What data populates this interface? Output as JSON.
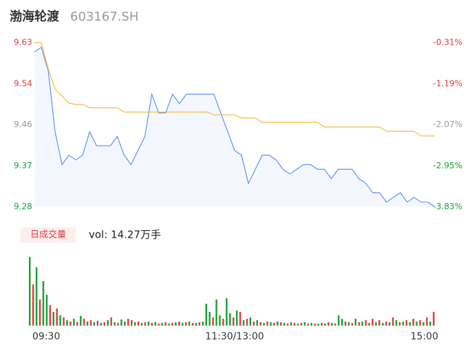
{
  "chart_data": {
    "type": "intraday",
    "title": "渤海轮渡",
    "subtitle": "603167.SH",
    "xlim": [
      0,
      240
    ],
    "xticks": [
      {
        "value": 0,
        "label": "09:30"
      },
      {
        "value": 120,
        "label": "11:30/13:00"
      },
      {
        "value": 240,
        "label": "15:00"
      }
    ],
    "ylim": [
      9.28,
      9.63
    ],
    "yticks": [
      9.28,
      {
        "value": 9.3675,
        "label": "9.37"
      },
      {
        "value": 9.455,
        "label": "9.46"
      },
      {
        "value": 9.5425,
        "label": "9.54"
      },
      9.63
    ],
    "ytick_colors": [
      "#1aa034",
      "#1aa034",
      "#999999",
      "#e23b3b",
      "#e23b3b"
    ],
    "y2lim": [
      -3.83,
      -0.31
    ],
    "y2ticks": [
      {
        "value": -3.83,
        "label": "-3.83%"
      },
      {
        "value": -2.95,
        "label": "-2.95%"
      },
      {
        "value": -2.07,
        "label": "-2.07%"
      },
      {
        "value": -1.19,
        "label": "-1.19%"
      },
      {
        "value": -0.31,
        "label": "-0.31%"
      }
    ],
    "series": [
      {
        "color": "#5b8ff9",
        "values": [
          9.61,
          9.62,
          9.57,
          9.44,
          9.37,
          9.39,
          9.38,
          9.39,
          9.44,
          9.41,
          9.41,
          9.41,
          9.43,
          9.39,
          9.37,
          9.4,
          9.43,
          9.52,
          9.48,
          9.48,
          9.52,
          9.5,
          9.52,
          9.52,
          9.52,
          9.52,
          9.52,
          9.48,
          9.44,
          9.4,
          9.39,
          9.33,
          9.36,
          9.39,
          9.39,
          9.38,
          9.36,
          9.35,
          9.36,
          9.37,
          9.37,
          9.36,
          9.36,
          9.34,
          9.36,
          9.36,
          9.36,
          9.34,
          9.33,
          9.31,
          9.31,
          9.29,
          9.3,
          9.31,
          9.29,
          9.3,
          9.29,
          9.29,
          9.28
        ]
      },
      {
        "color": "#f5b942",
        "values": [
          9.63,
          9.63,
          9.574,
          9.53,
          9.516,
          9.501,
          9.498,
          9.498,
          9.491,
          9.491,
          9.491,
          9.491,
          9.491,
          9.482,
          9.482,
          9.482,
          9.482,
          9.482,
          9.482,
          9.482,
          9.482,
          9.482,
          9.482,
          9.482,
          9.482,
          9.482,
          9.476,
          9.476,
          9.476,
          9.476,
          9.469,
          9.469,
          9.469,
          9.46,
          9.46,
          9.46,
          9.46,
          9.46,
          9.46,
          9.46,
          9.46,
          9.46,
          9.45,
          9.45,
          9.45,
          9.45,
          9.45,
          9.45,
          9.45,
          9.45,
          9.45,
          9.441,
          9.441,
          9.441,
          9.441,
          9.441,
          9.431,
          9.431,
          9.431
        ]
      }
    ],
    "volume": {
      "label": "日成交量",
      "text": "vol: 14.27万手",
      "ylim": [
        0,
        100
      ],
      "values": [
        100,
        60,
        85,
        38,
        65,
        45,
        30,
        20,
        25,
        15,
        12,
        8,
        6,
        10,
        5,
        14,
        10,
        6,
        8,
        5,
        7,
        4,
        5,
        8,
        12,
        5,
        4,
        9,
        6,
        10,
        8,
        5,
        6,
        4,
        5,
        6,
        4,
        5,
        3,
        4,
        5,
        3,
        4,
        5,
        6,
        4,
        5,
        6,
        4,
        4,
        5,
        6,
        32,
        20,
        12,
        38,
        15,
        10,
        40,
        18,
        12,
        22,
        20,
        8,
        10,
        12,
        6,
        8,
        5,
        4,
        6,
        5,
        4,
        6,
        5,
        4,
        3,
        5,
        4,
        3,
        4,
        5,
        3,
        4,
        3,
        3,
        4,
        3,
        5,
        4,
        3,
        15,
        10,
        6,
        5,
        4,
        10,
        5,
        6,
        8,
        4,
        10,
        5,
        8,
        4,
        6,
        5,
        12,
        8,
        5,
        6,
        8,
        5,
        10,
        6,
        8,
        5,
        12,
        6,
        20
      ],
      "colors": [
        "#1aa034",
        "#e23b3b",
        "#1aa034",
        "#e23b3b",
        "#1aa034",
        "#1aa034",
        "#e23b3b",
        "#1aa034",
        "#e23b3b",
        "#1aa034",
        "#e23b3b",
        "#1aa034",
        "#e23b3b",
        "#1aa034",
        "#e23b3b",
        "#1aa034",
        "#e23b3b",
        "#1aa034",
        "#e23b3b",
        "#1aa034",
        "#e23b3b",
        "#1aa034",
        "#e23b3b",
        "#1aa034",
        "#e23b3b",
        "#1aa034",
        "#e23b3b",
        "#1aa034",
        "#1aa034",
        "#e23b3b",
        "#e23b3b",
        "#1aa034",
        "#e23b3b",
        "#1aa034",
        "#e23b3b",
        "#1aa034",
        "#e23b3b",
        "#1aa034",
        "#e23b3b",
        "#1aa034",
        "#e23b3b",
        "#1aa034",
        "#e23b3b",
        "#1aa034",
        "#e23b3b",
        "#1aa034",
        "#e23b3b",
        "#1aa034",
        "#e23b3b",
        "#1aa034",
        "#e23b3b",
        "#1aa034",
        "#1aa034",
        "#1aa034",
        "#e23b3b",
        "#1aa034",
        "#1aa034",
        "#e23b3b",
        "#1aa034",
        "#1aa034",
        "#e23b3b",
        "#1aa034",
        "#e23b3b",
        "#1aa034",
        "#e23b3b",
        "#1aa034",
        "#e23b3b",
        "#1aa034",
        "#e23b3b",
        "#1aa034",
        "#e23b3b",
        "#1aa034",
        "#e23b3b",
        "#1aa034",
        "#e23b3b",
        "#1aa034",
        "#e23b3b",
        "#1aa034",
        "#e23b3b",
        "#1aa034",
        "#e23b3b",
        "#1aa034",
        "#e23b3b",
        "#1aa034",
        "#e23b3b",
        "#1aa034",
        "#e23b3b",
        "#1aa034",
        "#e23b3b",
        "#1aa034",
        "#e23b3b",
        "#1aa034",
        "#1aa034",
        "#e23b3b",
        "#1aa034",
        "#e23b3b",
        "#1aa034",
        "#e23b3b",
        "#1aa034",
        "#e23b3b",
        "#1aa034",
        "#e23b3b",
        "#1aa034",
        "#e23b3b",
        "#1aa034",
        "#e23b3b",
        "#1aa034",
        "#e23b3b",
        "#1aa034",
        "#e23b3b",
        "#1aa034",
        "#e23b3b",
        "#1aa034",
        "#e23b3b",
        "#1aa034",
        "#e23b3b",
        "#1aa034",
        "#e23b3b",
        "#1aa034",
        "#e23b3b"
      ]
    }
  }
}
